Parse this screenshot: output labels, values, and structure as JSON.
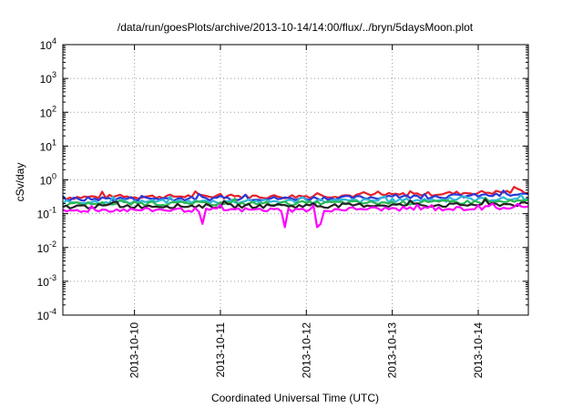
{
  "chart_data": {
    "type": "line",
    "title": "/data/run/goesPlots/archive/2013-10-14/14:00/flux/../bryn/5daysMoon.plot",
    "xlabel": "Coordinated Universal Time (UTC)",
    "ylabel": "cSv/day",
    "yscale": "log",
    "ylim": [
      0.0001,
      10000
    ],
    "xlim": [
      "2013-10-09 04:00",
      "2013-10-14 14:00"
    ],
    "grid": true,
    "y_ticks": [
      {
        "base": "10",
        "exp": "-4",
        "value": 0.0001
      },
      {
        "base": "10",
        "exp": "-3",
        "value": 0.001
      },
      {
        "base": "10",
        "exp": "-2",
        "value": 0.01
      },
      {
        "base": "10",
        "exp": "-1",
        "value": 0.1
      },
      {
        "base": "10",
        "exp": "0",
        "value": 1
      },
      {
        "base": "10",
        "exp": "1",
        "value": 10
      },
      {
        "base": "10",
        "exp": "2",
        "value": 100
      },
      {
        "base": "10",
        "exp": "3",
        "value": 1000
      },
      {
        "base": "10",
        "exp": "4",
        "value": 10000
      }
    ],
    "x_ticks": [
      "2013-10-10",
      "2013-10-11",
      "2013-10-12",
      "2013-10-13",
      "2013-10-14"
    ],
    "series": [
      {
        "color": "#e8202a",
        "x": [
          "2013-10-09 04:00",
          "2013-10-09 16:00",
          "2013-10-10 04:00",
          "2013-10-10 16:00",
          "2013-10-11 04:00",
          "2013-10-11 16:00",
          "2013-10-12 04:00",
          "2013-10-12 16:00",
          "2013-10-13 04:00",
          "2013-10-13 16:00",
          "2013-10-14 04:00",
          "2013-10-14 14:00"
        ],
        "y": [
          0.3,
          0.32,
          0.32,
          0.33,
          0.33,
          0.32,
          0.34,
          0.35,
          0.37,
          0.4,
          0.43,
          0.46
        ]
      },
      {
        "color": "#2a3ad8",
        "x": [
          "2013-10-09 04:00",
          "2013-10-09 16:00",
          "2013-10-10 04:00",
          "2013-10-10 16:00",
          "2013-10-11 04:00",
          "2013-10-11 16:00",
          "2013-10-12 04:00",
          "2013-10-12 16:00",
          "2013-10-13 04:00",
          "2013-10-13 16:00",
          "2013-10-14 04:00",
          "2013-10-14 14:00"
        ],
        "y": [
          0.26,
          0.28,
          0.28,
          0.28,
          0.29,
          0.28,
          0.29,
          0.3,
          0.32,
          0.33,
          0.35,
          0.36
        ]
      },
      {
        "color": "#30b8d8",
        "x": [
          "2013-10-09 04:00",
          "2013-10-09 16:00",
          "2013-10-10 04:00",
          "2013-10-10 16:00",
          "2013-10-11 04:00",
          "2013-10-11 16:00",
          "2013-10-12 04:00",
          "2013-10-12 16:00",
          "2013-10-13 04:00",
          "2013-10-13 16:00",
          "2013-10-14 04:00",
          "2013-10-14 14:00"
        ],
        "y": [
          0.22,
          0.23,
          0.23,
          0.23,
          0.23,
          0.23,
          0.24,
          0.24,
          0.25,
          0.26,
          0.27,
          0.28
        ]
      },
      {
        "color": "#2ab850",
        "x": [
          "2013-10-09 04:00",
          "2013-10-09 16:00",
          "2013-10-10 04:00",
          "2013-10-10 16:00",
          "2013-10-11 04:00",
          "2013-10-11 16:00",
          "2013-10-12 04:00",
          "2013-10-12 16:00",
          "2013-10-13 04:00",
          "2013-10-13 16:00",
          "2013-10-14 04:00",
          "2013-10-14 14:00"
        ],
        "y": [
          0.19,
          0.2,
          0.2,
          0.2,
          0.2,
          0.2,
          0.21,
          0.21,
          0.21,
          0.22,
          0.22,
          0.23
        ]
      },
      {
        "color": "#222222",
        "x": [
          "2013-10-09 04:00",
          "2013-10-09 16:00",
          "2013-10-10 04:00",
          "2013-10-10 16:00",
          "2013-10-11 04:00",
          "2013-10-11 16:00",
          "2013-10-12 04:00",
          "2013-10-12 16:00",
          "2013-10-13 04:00",
          "2013-10-13 16:00",
          "2013-10-14 04:00",
          "2013-10-14 14:00"
        ],
        "y": [
          0.16,
          0.17,
          0.17,
          0.17,
          0.17,
          0.17,
          0.17,
          0.18,
          0.18,
          0.18,
          0.19,
          0.19
        ]
      },
      {
        "color": "#ff00ff",
        "x": [
          "2013-10-09 04:00",
          "2013-10-09 16:00",
          "2013-10-10 04:00",
          "2013-10-10 16:00",
          "2013-10-11 04:00",
          "2013-10-11 16:00",
          "2013-10-12 04:00",
          "2013-10-12 16:00",
          "2013-10-13 04:00",
          "2013-10-13 16:00",
          "2013-10-14 04:00",
          "2013-10-14 14:00"
        ],
        "y": [
          0.12,
          0.13,
          0.13,
          0.13,
          0.13,
          0.13,
          0.13,
          0.14,
          0.14,
          0.14,
          0.15,
          0.15
        ]
      }
    ],
    "dips": [
      {
        "x": "2013-10-10 19:00",
        "y": 0.05
      },
      {
        "x": "2013-10-11 18:00",
        "y": 0.04
      },
      {
        "x": "2013-10-12 03:00",
        "y": 0.04
      },
      {
        "x": "2013-10-12 04:00",
        "y": 0.05
      }
    ]
  }
}
